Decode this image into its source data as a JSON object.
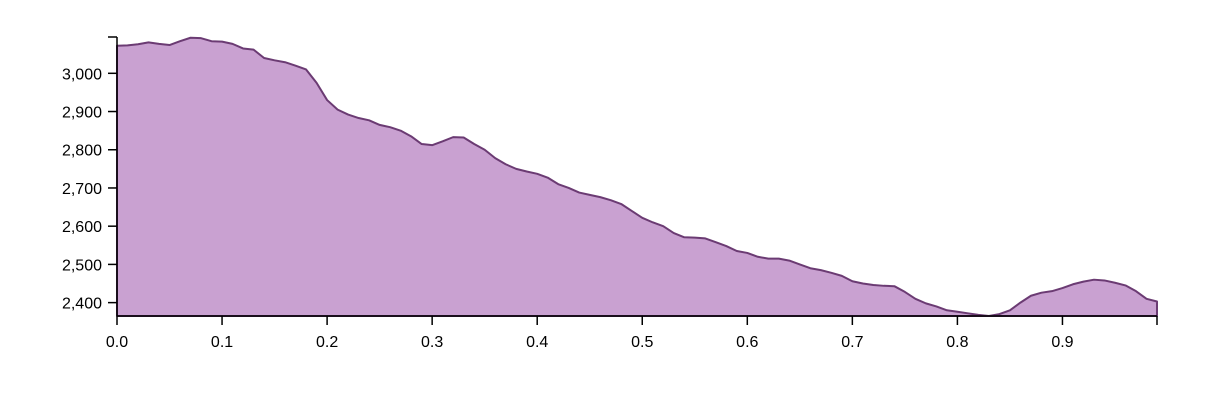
{
  "chart_data": {
    "type": "area",
    "title": "",
    "xlabel": "",
    "ylabel": "",
    "xlim": [
      0,
      0.99
    ],
    "ylim": [
      2365,
      3095
    ],
    "x_ticks": [
      0.0,
      0.1,
      0.2,
      0.3,
      0.4,
      0.5,
      0.6,
      0.7,
      0.8,
      0.9
    ],
    "x_tick_labels": [
      "0.0",
      "0.1",
      "0.2",
      "0.3",
      "0.4",
      "0.5",
      "0.6",
      "0.7",
      "0.8",
      "0.9"
    ],
    "y_ticks": [
      2400,
      2500,
      2600,
      2700,
      2800,
      2900,
      3000
    ],
    "y_tick_labels": [
      "2,400",
      "2,500",
      "2,600",
      "2,700",
      "2,800",
      "2,900",
      "3,000"
    ],
    "grid": false,
    "colors": {
      "fill": "#c9a1d1",
      "stroke": "#6b3b73"
    },
    "series": [
      {
        "x": [
          0.0,
          0.01,
          0.02,
          0.03,
          0.04,
          0.05,
          0.06,
          0.07,
          0.08,
          0.09,
          0.1,
          0.11,
          0.12,
          0.13,
          0.14,
          0.15,
          0.16,
          0.17,
          0.18,
          0.19,
          0.2,
          0.21,
          0.22,
          0.23,
          0.24,
          0.25,
          0.26,
          0.27,
          0.28,
          0.29,
          0.3,
          0.31,
          0.32,
          0.33,
          0.34,
          0.35,
          0.36,
          0.37,
          0.38,
          0.39,
          0.4,
          0.41,
          0.42,
          0.43,
          0.44,
          0.45,
          0.46,
          0.47,
          0.48,
          0.49,
          0.5,
          0.51,
          0.52,
          0.53,
          0.54,
          0.55,
          0.56,
          0.57,
          0.58,
          0.59,
          0.6,
          0.61,
          0.62,
          0.63,
          0.64,
          0.65,
          0.66,
          0.67,
          0.68,
          0.69,
          0.7,
          0.71,
          0.72,
          0.73,
          0.74,
          0.75,
          0.76,
          0.77,
          0.78,
          0.79,
          0.8,
          0.81,
          0.82,
          0.83,
          0.84,
          0.85,
          0.86,
          0.87,
          0.88,
          0.89,
          0.9,
          0.91,
          0.92,
          0.93,
          0.94,
          0.95,
          0.96,
          0.97,
          0.98,
          0.99
        ],
        "values": [
          3072,
          3073,
          3076,
          3081,
          3077,
          3074,
          3084,
          3093,
          3092,
          3084,
          3083,
          3077,
          3065,
          3062,
          3040,
          3034,
          3029,
          3020,
          3010,
          2975,
          2930,
          2905,
          2892,
          2883,
          2877,
          2865,
          2859,
          2850,
          2835,
          2815,
          2812,
          2822,
          2833,
          2832,
          2815,
          2800,
          2778,
          2762,
          2750,
          2743,
          2737,
          2727,
          2710,
          2700,
          2688,
          2682,
          2676,
          2668,
          2658,
          2640,
          2622,
          2610,
          2600,
          2582,
          2571,
          2570,
          2568,
          2558,
          2548,
          2535,
          2530,
          2520,
          2515,
          2515,
          2510,
          2500,
          2490,
          2485,
          2478,
          2470,
          2456,
          2450,
          2446,
          2444,
          2443,
          2428,
          2410,
          2398,
          2390,
          2380,
          2376,
          2372,
          2368,
          2365,
          2370,
          2380,
          2400,
          2418,
          2426,
          2430,
          2438,
          2448,
          2455,
          2460,
          2458,
          2452,
          2445,
          2430,
          2410,
          2403
        ]
      }
    ]
  }
}
